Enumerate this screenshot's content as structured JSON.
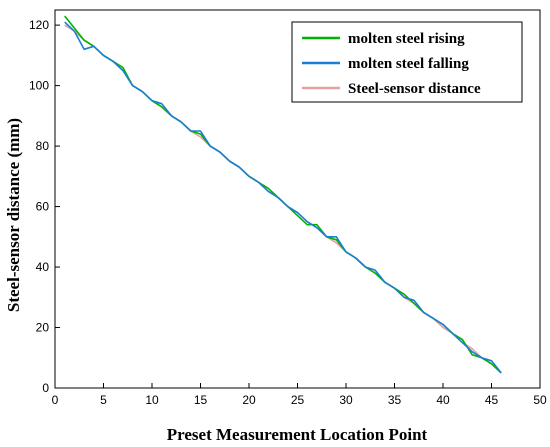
{
  "chart_data": {
    "type": "line",
    "title": "",
    "xlabel": "Preset Measurement Location Point",
    "ylabel": "Steel-sensor distance (mm)",
    "xlim": [
      0,
      50
    ],
    "ylim": [
      0,
      125
    ],
    "xticks": [
      0,
      5,
      10,
      15,
      20,
      25,
      30,
      35,
      40,
      45,
      50
    ],
    "yticks": [
      0,
      20,
      40,
      60,
      80,
      100,
      120
    ],
    "grid": false,
    "legend_position": "top-right",
    "series": [
      {
        "name": "molten steel rising",
        "color": "#00b300",
        "x": [
          1,
          2,
          3,
          4,
          5,
          6,
          7,
          8,
          9,
          10,
          11,
          12,
          13,
          14,
          15,
          16,
          17,
          18,
          19,
          20,
          21,
          22,
          23,
          24,
          25,
          26,
          27,
          28,
          29,
          30,
          31,
          32,
          33,
          34,
          35,
          36,
          37,
          38,
          39,
          40,
          41,
          42,
          43,
          44,
          45,
          46
        ],
        "y": [
          123,
          119,
          115,
          113,
          110,
          108,
          106,
          100,
          98,
          95,
          93,
          90,
          88,
          85,
          84,
          80,
          78,
          75,
          73,
          70,
          68,
          66,
          63,
          60,
          57,
          54,
          54,
          50,
          49,
          45,
          43,
          40,
          38,
          35,
          33,
          31,
          28,
          25,
          23,
          21,
          18,
          16,
          11,
          10,
          8,
          5
        ]
      },
      {
        "name": "molten steel falling",
        "color": "#1a7fd4",
        "x": [
          1,
          2,
          3,
          4,
          5,
          6,
          7,
          8,
          9,
          10,
          11,
          12,
          13,
          14,
          15,
          16,
          17,
          18,
          19,
          20,
          21,
          22,
          23,
          24,
          25,
          26,
          27,
          28,
          29,
          30,
          31,
          32,
          33,
          34,
          35,
          36,
          37,
          38,
          39,
          40,
          41,
          42,
          43,
          44,
          45,
          46
        ],
        "y": [
          121,
          118,
          112,
          113,
          110,
          108,
          105,
          100,
          98,
          95,
          94,
          90,
          88,
          85,
          85,
          80,
          78,
          75,
          73,
          70,
          68,
          65,
          63,
          60,
          58,
          55,
          53,
          50,
          50,
          45,
          43,
          40,
          39,
          35,
          33,
          30,
          29,
          25,
          23,
          21,
          18,
          15,
          12,
          10,
          9,
          5
        ]
      },
      {
        "name": "Steel-sensor distance",
        "color": "#e8a0a0",
        "x": [
          1,
          2,
          3,
          4,
          5,
          6,
          7,
          8,
          9,
          10,
          11,
          12,
          13,
          14,
          15,
          16,
          17,
          18,
          19,
          20,
          21,
          22,
          23,
          24,
          25,
          26,
          27,
          28,
          29,
          30,
          31,
          32,
          33,
          34,
          35,
          36,
          37,
          38,
          39,
          40,
          41,
          42,
          43,
          44,
          45,
          46
        ],
        "y": [
          120,
          118,
          115,
          113,
          110,
          108,
          105,
          100,
          98,
          95,
          93,
          90,
          88,
          85,
          83,
          80,
          78,
          75,
          73,
          70,
          68,
          65,
          63,
          60,
          58,
          55,
          53,
          50,
          48,
          45,
          43,
          40,
          38,
          35,
          33,
          30,
          28,
          25,
          23,
          20,
          18,
          15,
          13,
          10,
          8,
          5
        ]
      }
    ]
  }
}
